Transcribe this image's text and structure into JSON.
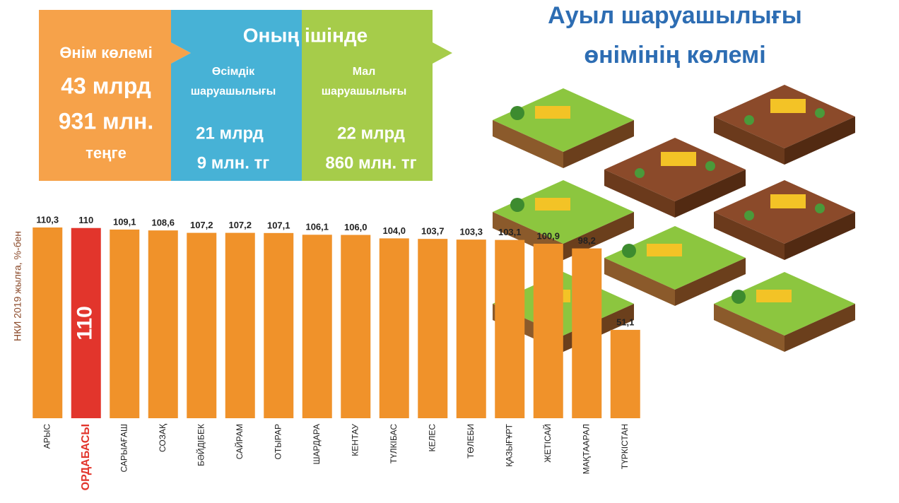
{
  "header": {
    "title_lines": [
      "Ауыл шаруашылығы",
      "өнімінің көлемі"
    ]
  },
  "summary": {
    "total": {
      "lines": [
        "Өнім көлемі",
        "43 млрд",
        "931 млн.",
        "теңге"
      ]
    },
    "including": "Оның ішінде",
    "crops": {
      "lines": [
        "Өсімдік",
        "шаруашылығы"
      ],
      "amount": [
        "21 млрд",
        "9 млн. тг"
      ]
    },
    "livestock": {
      "lines": [
        "Мал",
        "шаруашылығы"
      ],
      "amount": [
        "22 млрд",
        "860 млн. тг"
      ]
    }
  },
  "chart_data": {
    "type": "bar",
    "y_label": "НКИ 2019 жылға, %-бен",
    "categories": [
      "АРЫС",
      "ОРДАБАСЫ",
      "САРЫАҒАШ",
      "СОЗАҚ",
      "БӘЙДІБЕК",
      "САЙРАМ",
      "ОТЫРАР",
      "ШАРДАРА",
      "КЕНТАУ",
      "ТҮЛКІБАС",
      "КЕЛЕС",
      "ТӨЛЕБИ",
      "ҚАЗЫҒҰРТ",
      "ЖЕТІСАЙ",
      "МАҚТААРАЛ",
      "ТҮРКІСТАН"
    ],
    "values": [
      110.3,
      110,
      109.1,
      108.6,
      107.2,
      107.2,
      107.1,
      106.1,
      106.0,
      104.0,
      103.7,
      103.3,
      103.1,
      100.9,
      98.2,
      51.1
    ],
    "value_labels": [
      "110,3",
      "110",
      "109,1",
      "108,6",
      "107,2",
      "107,2",
      "107,1",
      "106,1",
      "106,0",
      "104,0",
      "103,7",
      "103,3",
      "103,1",
      "100,9",
      "98,2",
      "51,1"
    ],
    "colors": [
      "#f0922a",
      "#e2352c",
      "#f0922a",
      "#f0922a",
      "#f0922a",
      "#f0922a",
      "#f0922a",
      "#f0922a",
      "#f0922a",
      "#f0922a",
      "#f0922a",
      "#f0922a",
      "#f0922a",
      "#f0922a",
      "#f0922a",
      "#f0922a"
    ],
    "label_colors": [
      "#222222",
      "#e2352c",
      "#222222",
      "#222222",
      "#222222",
      "#222222",
      "#222222",
      "#222222",
      "#222222",
      "#222222",
      "#222222",
      "#222222",
      "#222222",
      "#222222",
      "#222222",
      "#222222"
    ]
  }
}
